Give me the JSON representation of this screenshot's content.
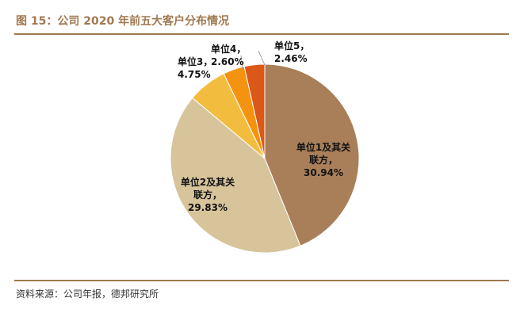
{
  "title": "图 15：公司 2020 年前五大客户分布情况",
  "source": "资料来源：公司年报，德邦研究所",
  "chart_data": {
    "type": "pie",
    "title": "",
    "slices": [
      {
        "label_lines": [
          "单位1及其关",
          "联方，"
        ],
        "value_text": "30.94%",
        "value": 30.94,
        "color": "#a87f59"
      },
      {
        "label_lines": [
          "单位2及其关",
          "联方，"
        ],
        "value_text": "29.83%",
        "value": 29.83,
        "color": "#d7c49b"
      },
      {
        "label_lines": [
          "单位3，"
        ],
        "value_text": "4.75%",
        "value": 4.75,
        "color": "#f2bd3f"
      },
      {
        "label_lines": [
          "单位4，"
        ],
        "value_text": "2.60%",
        "value": 2.6,
        "color": "#f3930f"
      },
      {
        "label_lines": [
          "单位5，"
        ],
        "value_text": "2.46%",
        "value": 2.46,
        "color": "#db5818"
      }
    ]
  }
}
